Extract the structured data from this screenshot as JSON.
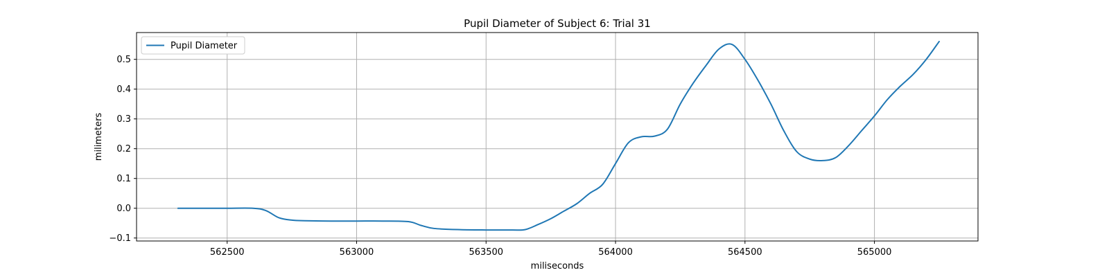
{
  "chart_data": {
    "type": "line",
    "title": "Pupil Diameter of Subject 6: Trial 31",
    "xlabel": "miliseconds",
    "ylabel": "milimeters",
    "xlim": [
      562150,
      565400
    ],
    "ylim": [
      -0.11,
      0.59
    ],
    "xticks": [
      562500,
      563000,
      563500,
      564000,
      564500,
      565000
    ],
    "xtick_labels": [
      "562500",
      "563000",
      "563500",
      "564000",
      "564500",
      "565000"
    ],
    "yticks": [
      -0.1,
      0.0,
      0.1,
      0.2,
      0.3,
      0.4,
      0.5
    ],
    "ytick_labels": [
      "−0.1",
      "0.0",
      "0.1",
      "0.2",
      "0.3",
      "0.4",
      "0.5"
    ],
    "grid": true,
    "legend_position": "top-left",
    "series": [
      {
        "name": "Pupil Diameter",
        "color": "#1f77b4",
        "x": [
          562310,
          562400,
          562500,
          562600,
          562650,
          562700,
          562750,
          562800,
          562900,
          563000,
          563100,
          563200,
          563250,
          563300,
          563400,
          563500,
          563600,
          563650,
          563700,
          563750,
          563800,
          563850,
          563900,
          563950,
          564000,
          564050,
          564100,
          564150,
          564200,
          564250,
          564300,
          564350,
          564400,
          564450,
          564500,
          564550,
          564600,
          564650,
          564700,
          564750,
          564800,
          564850,
          564900,
          564950,
          565000,
          565050,
          565100,
          565150,
          565200,
          565250
        ],
        "y": [
          0.0,
          0.0,
          0.0,
          0.0,
          -0.008,
          -0.032,
          -0.04,
          -0.042,
          -0.043,
          -0.043,
          -0.043,
          -0.045,
          -0.058,
          -0.068,
          -0.072,
          -0.073,
          -0.073,
          -0.072,
          -0.055,
          -0.035,
          -0.01,
          0.015,
          0.05,
          0.08,
          0.15,
          0.22,
          0.24,
          0.242,
          0.265,
          0.35,
          0.42,
          0.48,
          0.535,
          0.55,
          0.5,
          0.43,
          0.35,
          0.26,
          0.19,
          0.165,
          0.16,
          0.17,
          0.21,
          0.26,
          0.31,
          0.365,
          0.41,
          0.45,
          0.5,
          0.56
        ]
      }
    ]
  }
}
